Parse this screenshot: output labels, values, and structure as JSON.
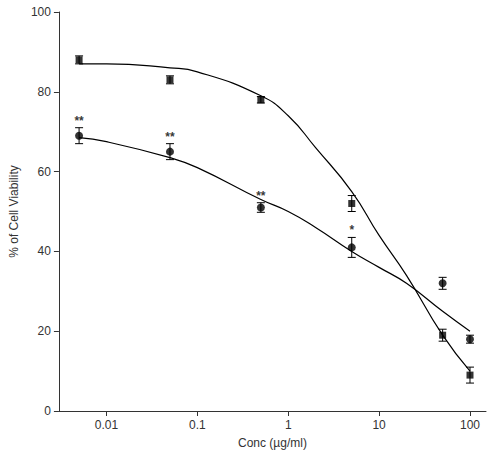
{
  "chart_data": {
    "type": "scatter",
    "x_label": "Conc (µg/ml)",
    "y_label": "% of Cell Viability",
    "log": "x",
    "grid": false,
    "xlim": [
      0.003,
      150
    ],
    "xticks": [
      0.01,
      0.1,
      1,
      10,
      100
    ],
    "ylim": [
      0,
      100
    ],
    "yticks": [
      0,
      20,
      40,
      60,
      80,
      100
    ],
    "x": [
      0.005,
      0.05,
      0.5,
      5,
      50,
      100
    ],
    "series": [
      {
        "color": "#000000",
        "marker": "square",
        "line_style": "solid",
        "values": [
          88,
          83,
          78,
          52,
          19,
          9
        ],
        "errors": [
          1,
          1,
          0.8,
          2,
          1.5,
          2
        ],
        "fit": {
          "x": [
            0.005,
            0.01,
            0.05,
            0.1,
            0.5,
            1,
            2,
            5,
            10,
            20,
            50,
            100
          ],
          "values": [
            87,
            87,
            86,
            85,
            79,
            74,
            66,
            55,
            44,
            34,
            19,
            10
          ]
        }
      },
      {
        "color": "#000000",
        "marker": "circle",
        "line_style": "solid",
        "values": [
          69,
          65,
          51,
          41,
          32,
          18
        ],
        "errors": [
          2,
          2,
          1.2,
          2.5,
          1.5,
          1
        ],
        "annotations": [
          "**",
          "**",
          "**",
          "*",
          null,
          null
        ],
        "fit": {
          "x": [
            0.005,
            0.01,
            0.05,
            0.1,
            0.5,
            1,
            2,
            5,
            10,
            20,
            50,
            100
          ],
          "values": [
            68.5,
            67.5,
            63.5,
            61,
            53,
            50,
            46,
            40,
            36,
            32,
            25,
            20
          ]
        }
      }
    ]
  }
}
